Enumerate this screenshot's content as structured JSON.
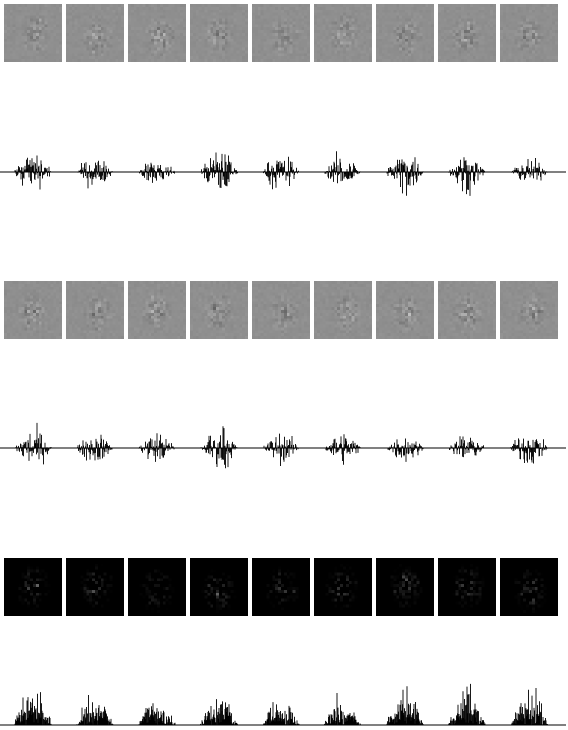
{
  "figure": {
    "thumbnails_per_row": 9,
    "thumb_pixels": 20,
    "rows": [
      {
        "kind": "image",
        "palette": "gray",
        "background_shade": 0.56
      },
      {
        "kind": "signal",
        "style": "bipolar"
      },
      {
        "kind": "image",
        "palette": "gray",
        "background_shade": 0.56
      },
      {
        "kind": "signal",
        "style": "bipolar"
      },
      {
        "kind": "image",
        "palette": "dark",
        "background_shade": 0.0
      },
      {
        "kind": "signal",
        "style": "positive"
      }
    ],
    "colors": {
      "signal_line": "#000000",
      "axis_line": "#000000",
      "page_background": "#ffffff"
    }
  }
}
